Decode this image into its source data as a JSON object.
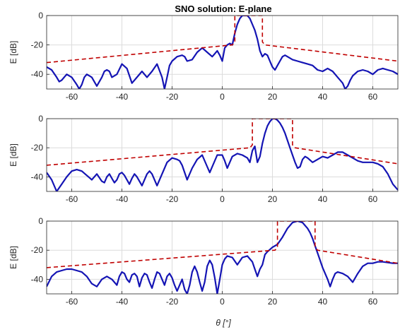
{
  "figure": {
    "title": "SNO solution: E-plane",
    "xlabel": "θ [°]",
    "colors": {
      "pattern": "#1414b4",
      "mask": "#c00000",
      "grid": "#dcdcdc",
      "axis": "#262626"
    }
  },
  "chart_data": [
    {
      "type": "line",
      "title": "SNO solution: E-plane",
      "xlabel": "",
      "ylabel": "E [dB]",
      "xlim": [
        -70,
        70
      ],
      "ylim": [
        -50,
        0
      ],
      "xticks": [
        -60,
        -40,
        -20,
        0,
        20,
        40,
        60
      ],
      "yticks": [
        0,
        -20,
        -40
      ],
      "grid": true,
      "series": [
        {
          "style": "solid",
          "x": [
            -70,
            -68,
            -66,
            -65,
            -64,
            -62,
            -60,
            -58,
            -57,
            -56,
            -55,
            -54,
            -52,
            -50,
            -48,
            -47,
            -46,
            -45,
            -44,
            -42,
            -40,
            -38,
            -36,
            -34,
            -32,
            -30,
            -28,
            -26,
            -24,
            -23,
            -22,
            -21,
            -20,
            -18,
            -16,
            -15,
            -14,
            -12,
            -10,
            -8,
            -6,
            -4,
            -3,
            -2,
            -1,
            0,
            1,
            2,
            3,
            4,
            5,
            6,
            7,
            8,
            9,
            10,
            11,
            12,
            13,
            14,
            15,
            16,
            17,
            18,
            19,
            20,
            21,
            22,
            23,
            24,
            25,
            26,
            28,
            30,
            32,
            34,
            36,
            38,
            40,
            42,
            44,
            46,
            48,
            49,
            50,
            51,
            52,
            54,
            56,
            58,
            60,
            62,
            64,
            66,
            68,
            70
          ],
          "y": [
            -35,
            -37,
            -42,
            -45,
            -44,
            -40,
            -42,
            -47,
            -50,
            -47,
            -42,
            -40,
            -42,
            -48,
            -42,
            -38,
            -37,
            -38,
            -42,
            -40,
            -33,
            -36,
            -46,
            -42,
            -38,
            -42,
            -38,
            -33,
            -42,
            -50,
            -42,
            -34,
            -31,
            -28,
            -27,
            -28,
            -31,
            -30,
            -25,
            -22,
            -25,
            -28,
            -26,
            -24,
            -27,
            -31,
            -22,
            -20,
            -19,
            -20,
            -12,
            -6,
            -2,
            0,
            0,
            0,
            -2,
            -6,
            -10,
            -16,
            -24,
            -28,
            -26,
            -27,
            -31,
            -35,
            -37,
            -34,
            -31,
            -28,
            -27,
            -28,
            -30,
            -31,
            -32,
            -33,
            -34,
            -37,
            -38,
            -36,
            -38,
            -42,
            -46,
            -50,
            -48,
            -44,
            -41,
            -38,
            -37,
            -38,
            -40,
            -37,
            -36,
            -37,
            -38,
            -40
          ]
        },
        {
          "style": "dashed",
          "x": [
            -70,
            4,
            5,
            5,
            16,
            16,
            17,
            70
          ],
          "y": [
            -32,
            -20,
            -18,
            0,
            0,
            -18,
            -20,
            -31
          ]
        }
      ]
    },
    {
      "type": "line",
      "title": "",
      "xlabel": "",
      "ylabel": "E [dB]",
      "xlim": [
        -70,
        70
      ],
      "ylim": [
        -50,
        0
      ],
      "xticks": [
        -60,
        -40,
        -20,
        0,
        20,
        40,
        60
      ],
      "yticks": [
        0,
        -20,
        -40
      ],
      "grid": true,
      "series": [
        {
          "style": "solid",
          "x": [
            -70,
            -68,
            -66,
            -64,
            -62,
            -60,
            -58,
            -56,
            -54,
            -52,
            -50,
            -48,
            -47,
            -46,
            -45,
            -44,
            -43,
            -42,
            -41,
            -40,
            -39,
            -38,
            -37,
            -36,
            -35,
            -34,
            -32,
            -30,
            -29,
            -28,
            -26,
            -24,
            -22,
            -20,
            -18,
            -17,
            -16,
            -14,
            -12,
            -10,
            -8,
            -6,
            -5,
            -4,
            -2,
            0,
            1,
            2,
            4,
            6,
            8,
            10,
            11,
            12,
            13,
            14,
            15,
            16,
            17,
            18,
            19,
            20,
            21,
            22,
            23,
            24,
            25,
            26,
            27,
            28,
            29,
            30,
            31,
            32,
            33,
            34,
            36,
            38,
            40,
            42,
            44,
            46,
            48,
            50,
            52,
            54,
            56,
            58,
            60,
            62,
            64,
            66,
            68,
            70
          ],
          "y": [
            -37,
            -42,
            -50,
            -45,
            -40,
            -36,
            -35,
            -36,
            -39,
            -42,
            -38,
            -43,
            -44,
            -40,
            -38,
            -41,
            -44,
            -42,
            -38,
            -37,
            -39,
            -42,
            -45,
            -41,
            -38,
            -40,
            -46,
            -38,
            -36,
            -38,
            -46,
            -38,
            -30,
            -27,
            -28,
            -29,
            -32,
            -42,
            -34,
            -28,
            -25,
            -33,
            -37,
            -33,
            -25,
            -25,
            -29,
            -34,
            -26,
            -24,
            -25,
            -27,
            -30,
            -22,
            -19,
            -30,
            -26,
            -17,
            -10,
            -5,
            -2,
            0,
            0,
            -1,
            -3,
            -6,
            -10,
            -15,
            -20,
            -25,
            -30,
            -34,
            -33,
            -28,
            -26,
            -27,
            -30,
            -28,
            -26,
            -27,
            -25,
            -23,
            -23,
            -25,
            -27,
            -29,
            -30,
            -30,
            -30,
            -31,
            -33,
            -38,
            -45,
            -49
          ]
        },
        {
          "style": "dashed",
          "x": [
            -70,
            11,
            12,
            12,
            28,
            28,
            29,
            70
          ],
          "y": [
            -32,
            -20,
            -18,
            0,
            0,
            -18,
            -20,
            -31
          ]
        }
      ]
    },
    {
      "type": "line",
      "title": "",
      "xlabel": "θ [°]",
      "ylabel": "E [dB]",
      "xlim": [
        -70,
        70
      ],
      "ylim": [
        -50,
        0
      ],
      "xticks": [
        -60,
        -40,
        -20,
        0,
        20,
        40,
        60
      ],
      "yticks": [
        0,
        -20,
        -40
      ],
      "grid": true,
      "series": [
        {
          "style": "solid",
          "x": [
            -70,
            -68,
            -66,
            -64,
            -62,
            -60,
            -58,
            -56,
            -54,
            -52,
            -50,
            -48,
            -46,
            -44,
            -42,
            -41,
            -40,
            -39,
            -38,
            -37,
            -36,
            -35,
            -34,
            -33,
            -32,
            -31,
            -30,
            -29,
            -28,
            -27,
            -26,
            -25,
            -24,
            -23,
            -22,
            -21,
            -20,
            -19,
            -18,
            -17,
            -16,
            -15,
            -14,
            -13,
            -12,
            -11,
            -10,
            -9,
            -8,
            -7,
            -6,
            -5,
            -4,
            -3,
            -2,
            -1,
            0,
            1,
            2,
            4,
            6,
            8,
            10,
            11,
            12,
            13,
            14,
            15,
            16,
            17,
            18,
            20,
            22,
            24,
            26,
            28,
            30,
            32,
            34,
            35,
            36,
            37,
            38,
            40,
            42,
            43,
            44,
            45,
            46,
            48,
            50,
            52,
            54,
            56,
            58,
            60,
            62,
            64,
            66,
            68,
            70
          ],
          "y": [
            -45,
            -38,
            -35,
            -34,
            -33,
            -33,
            -34,
            -35,
            -38,
            -43,
            -45,
            -40,
            -38,
            -40,
            -44,
            -38,
            -35,
            -36,
            -40,
            -42,
            -37,
            -36,
            -38,
            -45,
            -39,
            -36,
            -37,
            -42,
            -46,
            -40,
            -35,
            -36,
            -40,
            -44,
            -38,
            -36,
            -39,
            -44,
            -48,
            -44,
            -40,
            -47,
            -50,
            -44,
            -35,
            -31,
            -35,
            -42,
            -48,
            -42,
            -31,
            -27,
            -30,
            -39,
            -50,
            -40,
            -30,
            -26,
            -24,
            -25,
            -30,
            -25,
            -24,
            -26,
            -28,
            -33,
            -38,
            -33,
            -30,
            -23,
            -21,
            -18,
            -16,
            -11,
            -5,
            -1,
            0,
            -1,
            -5,
            -8,
            -12,
            -17,
            -22,
            -32,
            -40,
            -45,
            -40,
            -36,
            -35,
            -36,
            -38,
            -42,
            -36,
            -31,
            -29,
            -29,
            -28,
            -28,
            -28.5,
            -29,
            -29
          ]
        },
        {
          "style": "dashed",
          "x": [
            -70,
            21,
            22,
            22,
            37,
            37,
            38,
            70
          ],
          "y": [
            -32,
            -20,
            -18,
            0,
            0,
            -18,
            -20,
            -29
          ]
        }
      ]
    }
  ]
}
